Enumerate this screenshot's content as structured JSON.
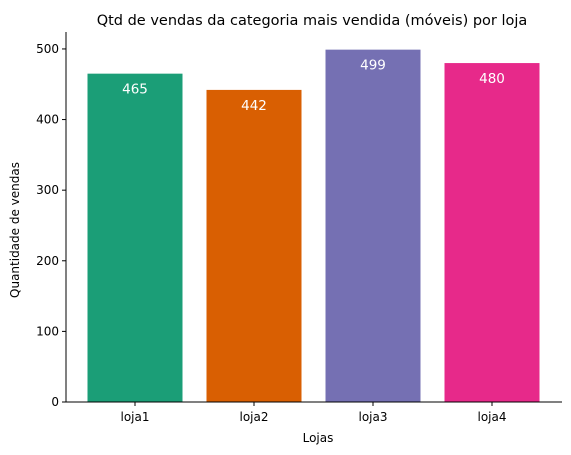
{
  "chart_data": {
    "type": "bar",
    "title": "Qtd de vendas da categoria mais vendida (móveis) por loja",
    "xlabel": "Lojas",
    "ylabel": "Quantidade de vendas",
    "categories": [
      "loja1",
      "loja2",
      "loja3",
      "loja4"
    ],
    "values": [
      465,
      442,
      499,
      480
    ],
    "data_labels": [
      "465",
      "442",
      "499",
      "480"
    ],
    "colors": [
      "#1b9e77",
      "#d95f02",
      "#7570b3",
      "#e7298a"
    ],
    "ylim": [
      0,
      524
    ],
    "yticks": [
      0,
      100,
      200,
      300,
      400,
      500
    ],
    "grid": false,
    "legend": "none"
  }
}
